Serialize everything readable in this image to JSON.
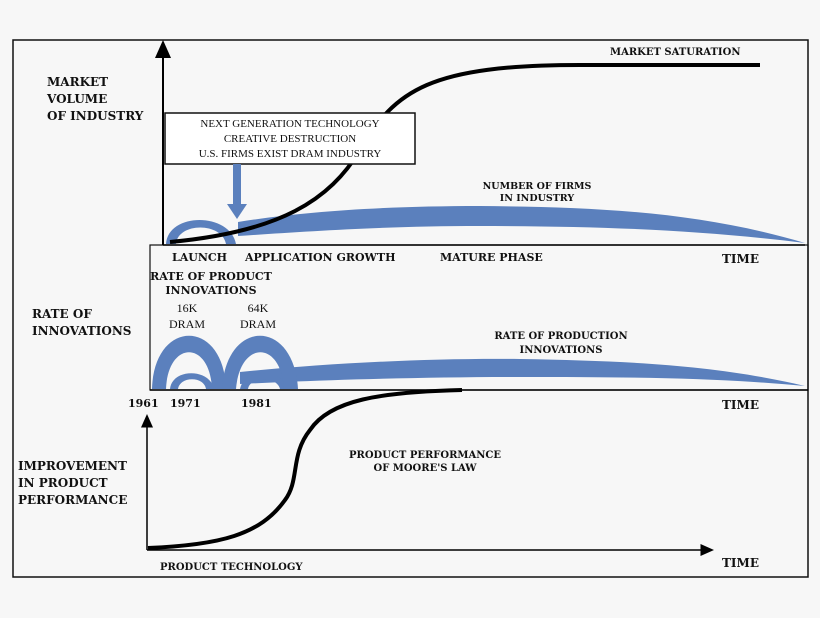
{
  "panel1": {
    "ylabel": [
      "MARKET",
      "VOLUME",
      "OF INDUSTRY"
    ],
    "saturation_label": "MARKET SATURATION",
    "callout": [
      "NEXT GENERATION TECHNOLOGY",
      "CREATIVE DESTRUCTION",
      "U.S. FIRMS EXIST DRAM INDUSTRY"
    ],
    "firms_label": [
      "NUMBER OF FIRMS",
      "IN INDUSTRY"
    ],
    "phases": [
      "LAUNCH",
      "APPLICATION GROWTH",
      "MATURE PHASE"
    ],
    "time_label": "TIME"
  },
  "panel2": {
    "ylabel": [
      "RATE OF",
      "INNOVATIONS"
    ],
    "product_innov_label": [
      "RATE OF PRODUCT",
      "INNOVATIONS"
    ],
    "dram16": [
      "16K",
      "DRAM"
    ],
    "dram64": [
      "64K",
      "DRAM"
    ],
    "production_label": [
      "RATE OF PRODUCTION",
      "INNOVATIONS"
    ],
    "years": [
      "1961",
      "1971",
      "1981"
    ],
    "time_label": "TIME"
  },
  "panel3": {
    "ylabel": [
      "IMPROVEMENT",
      "IN PRODUCT",
      "PERFORMANCE"
    ],
    "curve_label": [
      "PRODUCT PERFORMANCE",
      "OF MOORE'S LAW"
    ],
    "xlabel": "PRODUCT TECHNOLOGY",
    "time_label": "TIME"
  },
  "colors": {
    "blue": "#5b80bd",
    "ink": "#000000"
  }
}
